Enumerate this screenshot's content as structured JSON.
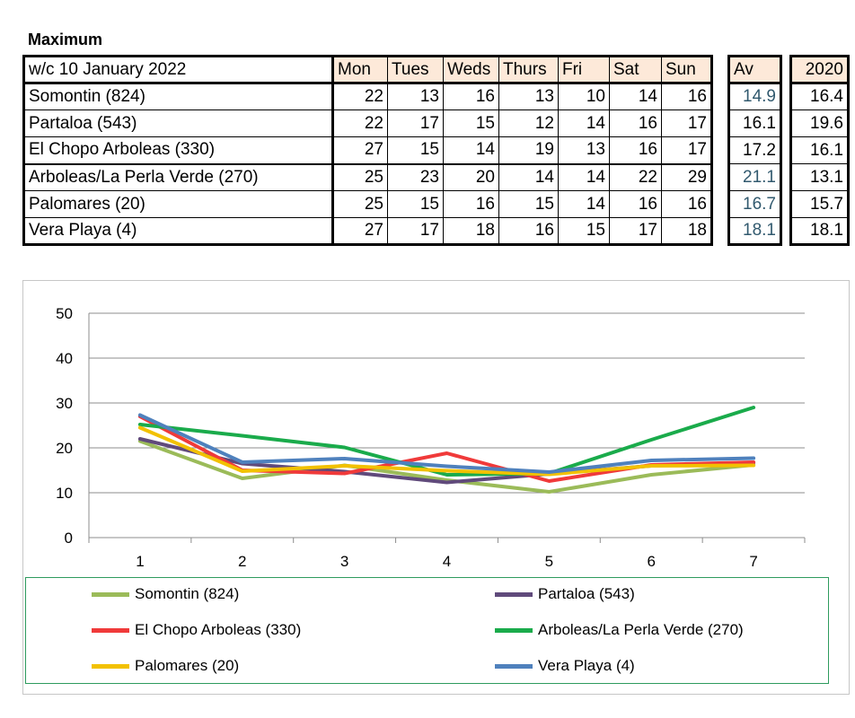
{
  "title": "Maximum",
  "table": {
    "week_label": "w/c 10 January 2022",
    "days": [
      "Mon",
      "Tues",
      "Weds",
      "Thurs",
      "Fri",
      "Sat",
      "Sun"
    ],
    "av_label": "Av",
    "prev_year_label": "2020",
    "rows": [
      {
        "name": "Somontin (824)",
        "vals": [
          "22",
          "13",
          "16",
          "13",
          "10",
          "14",
          "16"
        ],
        "av": "14.9",
        "prev": "16.4"
      },
      {
        "name": "Partaloa (543)",
        "vals": [
          "22",
          "17",
          "15",
          "12",
          "14",
          "16",
          "17"
        ],
        "av": "16.1",
        "prev": "19.6"
      },
      {
        "name": "El Chopo  Arboleas (330)",
        "vals": [
          "27",
          "15",
          "14",
          "19",
          "13",
          "16",
          "17"
        ],
        "av": "17.2",
        "prev": "16.1"
      },
      {
        "name": "Arboleas/La Perla Verde (270)",
        "vals": [
          "25",
          "23",
          "20",
          "14",
          "14",
          "22",
          "29"
        ],
        "av": "21.1",
        "prev": "13.1"
      },
      {
        "name": "Palomares (20)",
        "vals": [
          "25",
          "15",
          "16",
          "15",
          "14",
          "16",
          "16"
        ],
        "av": "16.7",
        "prev": "15.7"
      },
      {
        "name": "Vera Playa (4)",
        "vals": [
          "27",
          "17",
          "18",
          "16",
          "15",
          "17",
          "18"
        ],
        "av": "18.1",
        "prev": "18.1"
      }
    ]
  },
  "chart_data": {
    "type": "line",
    "x": [
      1,
      2,
      3,
      4,
      5,
      6,
      7
    ],
    "ylim": [
      0,
      50
    ],
    "yticks": [
      0,
      10,
      20,
      30,
      40,
      50
    ],
    "grid": true,
    "legend_position": "bottom",
    "series": [
      {
        "name": "Somontin (824)",
        "color": "#9bbb59",
        "values": [
          21.5,
          13.2,
          16.1,
          12.8,
          10.2,
          14.0,
          16.2
        ]
      },
      {
        "name": "Partaloa (543)",
        "color": "#604a7b",
        "values": [
          22.0,
          16.5,
          14.7,
          12.3,
          14.2,
          16.0,
          16.7
        ]
      },
      {
        "name": "El Chopo  Arboleas (330)",
        "color": "#f03a3a",
        "values": [
          27.0,
          15.0,
          14.3,
          18.8,
          12.6,
          16.2,
          16.8
        ]
      },
      {
        "name": "Arboleas/La Perla Verde (270)",
        "color": "#1aab4b",
        "values": [
          25.2,
          22.7,
          20.1,
          14.0,
          14.3,
          21.8,
          29.0
        ]
      },
      {
        "name": "Palomares (20)",
        "color": "#f2c100",
        "values": [
          24.5,
          14.8,
          16.0,
          14.9,
          14.1,
          16.0,
          16.1
        ]
      },
      {
        "name": "Vera Playa (4)",
        "color": "#4f81bd",
        "values": [
          27.3,
          16.8,
          17.6,
          15.9,
          14.6,
          17.2,
          17.7
        ]
      }
    ]
  }
}
